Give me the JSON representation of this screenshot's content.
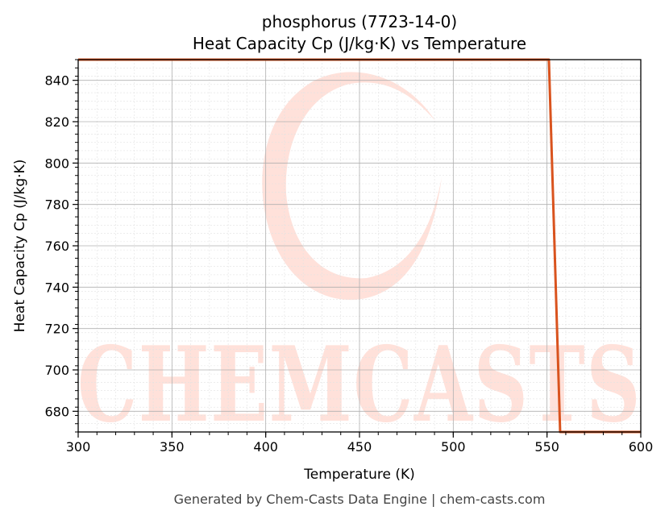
{
  "chart_data": {
    "type": "line",
    "title": "phosphorus (7723-14-0)",
    "subtitle": "Heat Capacity Cp (J/kg·K) vs Temperature",
    "xlabel": "Temperature (K)",
    "ylabel": "Heat Capacity Cp (J/kg·K)",
    "xlim": [
      300,
      600
    ],
    "ylim": [
      670,
      850
    ],
    "xticks": [
      300,
      350,
      400,
      450,
      500,
      550,
      600
    ],
    "yticks": [
      680,
      700,
      720,
      740,
      760,
      780,
      800,
      820,
      840
    ],
    "grid": true,
    "series": [
      {
        "color": "#d9531e",
        "x": [
          300,
          551,
          557,
          600
        ],
        "y": [
          850,
          850,
          670,
          670
        ]
      }
    ]
  },
  "watermark": {
    "text": "CHEMCASTS",
    "color": "#ffe1da"
  },
  "footer": "Generated by Chem-Casts Data Engine | chem-casts.com"
}
